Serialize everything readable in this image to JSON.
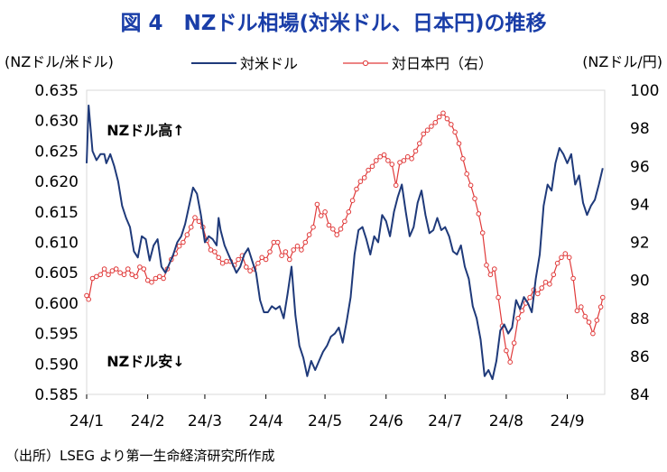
{
  "title": "図 4　NZドル相場(対米ドル、日本円)の推移",
  "source": "（出所）LSEG より第一生命経済研究所作成",
  "chart_data": {
    "type": "line",
    "title": "図 4　NZドル相場(対米ドル、日本円)の推移",
    "left_axis_label": "(NZドル/米ドル)",
    "right_axis_label": "(NZドル/円)",
    "x_tick_labels": [
      "24/1",
      "24/2",
      "24/3",
      "24/4",
      "24/5",
      "24/6",
      "24/7",
      "24/8",
      "24/9"
    ],
    "x_tick_days": [
      0,
      31,
      60,
      91,
      121,
      152,
      182,
      213,
      244
    ],
    "x_range_days": [
      0,
      263
    ],
    "left_ylim": [
      0.585,
      0.635
    ],
    "left_ticks": [
      "0.585",
      "0.590",
      "0.595",
      "0.600",
      "0.605",
      "0.610",
      "0.615",
      "0.620",
      "0.625",
      "0.630",
      "0.635"
    ],
    "right_ylim": [
      84,
      100
    ],
    "right_ticks": [
      "84",
      "86",
      "88",
      "90",
      "92",
      "94",
      "96",
      "98",
      "100"
    ],
    "annotations": [
      {
        "text": "NZドル高↑",
        "day": 30,
        "value": 0.6285,
        "axis": "left"
      },
      {
        "text": "NZドル安↓",
        "day": 30,
        "value": 0.5905,
        "axis": "left"
      }
    ],
    "legend_position": "top",
    "grid": false,
    "series": [
      {
        "name": "対米ドル",
        "axis": "left",
        "color": "#1f3a7a",
        "marker": "none",
        "points": [
          [
            0,
            0.623
          ],
          [
            1,
            0.6325
          ],
          [
            3,
            0.625
          ],
          [
            5,
            0.6235
          ],
          [
            7,
            0.6245
          ],
          [
            9,
            0.6245
          ],
          [
            10,
            0.623
          ],
          [
            12,
            0.6245
          ],
          [
            14,
            0.6225
          ],
          [
            16,
            0.62
          ],
          [
            18,
            0.616
          ],
          [
            20,
            0.614
          ],
          [
            22,
            0.6125
          ],
          [
            24,
            0.6085
          ],
          [
            26,
            0.6075
          ],
          [
            28,
            0.611
          ],
          [
            30,
            0.6105
          ],
          [
            32,
            0.607
          ],
          [
            34,
            0.6095
          ],
          [
            36,
            0.6105
          ],
          [
            38,
            0.606
          ],
          [
            40,
            0.605
          ],
          [
            42,
            0.6065
          ],
          [
            44,
            0.608
          ],
          [
            46,
            0.61
          ],
          [
            48,
            0.611
          ],
          [
            50,
            0.613
          ],
          [
            52,
            0.616
          ],
          [
            54,
            0.619
          ],
          [
            56,
            0.618
          ],
          [
            58,
            0.6145
          ],
          [
            60,
            0.61
          ],
          [
            62,
            0.611
          ],
          [
            64,
            0.6105
          ],
          [
            66,
            0.6095
          ],
          [
            67,
            0.614
          ],
          [
            68,
            0.612
          ],
          [
            70,
            0.6095
          ],
          [
            72,
            0.608
          ],
          [
            74,
            0.6065
          ],
          [
            76,
            0.605
          ],
          [
            78,
            0.606
          ],
          [
            80,
            0.608
          ],
          [
            82,
            0.609
          ],
          [
            84,
            0.607
          ],
          [
            86,
            0.605
          ],
          [
            88,
            0.6005
          ],
          [
            90,
            0.5985
          ],
          [
            92,
            0.5985
          ],
          [
            94,
            0.5995
          ],
          [
            96,
            0.599
          ],
          [
            98,
            0.5995
          ],
          [
            100,
            0.5975
          ],
          [
            102,
            0.6015
          ],
          [
            104,
            0.606
          ],
          [
            106,
            0.598
          ],
          [
            108,
            0.593
          ],
          [
            110,
            0.591
          ],
          [
            112,
            0.588
          ],
          [
            114,
            0.5905
          ],
          [
            116,
            0.589
          ],
          [
            118,
            0.5905
          ],
          [
            120,
            0.592
          ],
          [
            122,
            0.593
          ],
          [
            124,
            0.5945
          ],
          [
            126,
            0.595
          ],
          [
            128,
            0.596
          ],
          [
            130,
            0.5935
          ],
          [
            132,
            0.597
          ],
          [
            134,
            0.601
          ],
          [
            136,
            0.608
          ],
          [
            138,
            0.612
          ],
          [
            140,
            0.6125
          ],
          [
            142,
            0.6105
          ],
          [
            144,
            0.608
          ],
          [
            146,
            0.611
          ],
          [
            148,
            0.61
          ],
          [
            150,
            0.6145
          ],
          [
            152,
            0.6135
          ],
          [
            154,
            0.611
          ],
          [
            156,
            0.615
          ],
          [
            158,
            0.6175
          ],
          [
            160,
            0.6195
          ],
          [
            162,
            0.615
          ],
          [
            164,
            0.611
          ],
          [
            166,
            0.6125
          ],
          [
            168,
            0.6165
          ],
          [
            170,
            0.6185
          ],
          [
            172,
            0.6145
          ],
          [
            174,
            0.6115
          ],
          [
            176,
            0.612
          ],
          [
            178,
            0.614
          ],
          [
            180,
            0.612
          ],
          [
            182,
            0.6125
          ],
          [
            184,
            0.611
          ],
          [
            186,
            0.6085
          ],
          [
            188,
            0.608
          ],
          [
            190,
            0.6095
          ],
          [
            192,
            0.606
          ],
          [
            194,
            0.604
          ],
          [
            196,
            0.5995
          ],
          [
            198,
            0.5975
          ],
          [
            200,
            0.594
          ],
          [
            202,
            0.588
          ],
          [
            204,
            0.589
          ],
          [
            206,
            0.5875
          ],
          [
            208,
            0.5905
          ],
          [
            210,
            0.5955
          ],
          [
            212,
            0.5965
          ],
          [
            214,
            0.595
          ],
          [
            216,
            0.596
          ],
          [
            218,
            0.6005
          ],
          [
            220,
            0.599
          ],
          [
            222,
            0.601
          ],
          [
            224,
            0.6
          ],
          [
            226,
            0.5985
          ],
          [
            228,
            0.604
          ],
          [
            230,
            0.608
          ],
          [
            232,
            0.616
          ],
          [
            234,
            0.6195
          ],
          [
            236,
            0.6185
          ],
          [
            238,
            0.623
          ],
          [
            240,
            0.6255
          ],
          [
            242,
            0.6245
          ],
          [
            244,
            0.623
          ],
          [
            246,
            0.6245
          ],
          [
            248,
            0.6195
          ],
          [
            250,
            0.621
          ],
          [
            252,
            0.6165
          ],
          [
            254,
            0.6145
          ],
          [
            256,
            0.616
          ],
          [
            258,
            0.617
          ],
          [
            260,
            0.6195
          ],
          [
            262,
            0.6222
          ]
        ]
      },
      {
        "name": "対日本円（右）",
        "axis": "right",
        "color": "#e03a3a",
        "marker": "open-circle",
        "points": [
          [
            0,
            89.2
          ],
          [
            1,
            89.0
          ],
          [
            3,
            90.1
          ],
          [
            5,
            90.2
          ],
          [
            7,
            90.3
          ],
          [
            9,
            90.6
          ],
          [
            11,
            90.3
          ],
          [
            13,
            90.5
          ],
          [
            15,
            90.6
          ],
          [
            17,
            90.4
          ],
          [
            19,
            90.3
          ],
          [
            21,
            90.6
          ],
          [
            23,
            90.3
          ],
          [
            25,
            90.2
          ],
          [
            27,
            90.7
          ],
          [
            29,
            90.6
          ],
          [
            31,
            90.0
          ],
          [
            33,
            89.9
          ],
          [
            35,
            90.1
          ],
          [
            37,
            90.2
          ],
          [
            39,
            90.1
          ],
          [
            41,
            90.6
          ],
          [
            43,
            91.1
          ],
          [
            45,
            91.4
          ],
          [
            47,
            91.8
          ],
          [
            49,
            92.0
          ],
          [
            51,
            92.4
          ],
          [
            53,
            92.8
          ],
          [
            55,
            93.3
          ],
          [
            57,
            93.1
          ],
          [
            59,
            92.8
          ],
          [
            61,
            92.1
          ],
          [
            63,
            91.6
          ],
          [
            65,
            91.5
          ],
          [
            67,
            91.2
          ],
          [
            69,
            90.9
          ],
          [
            71,
            91.0
          ],
          [
            73,
            91.0
          ],
          [
            75,
            90.8
          ],
          [
            77,
            91.1
          ],
          [
            79,
            91.3
          ],
          [
            81,
            90.7
          ],
          [
            83,
            90.5
          ],
          [
            85,
            90.6
          ],
          [
            87,
            90.9
          ],
          [
            89,
            91.2
          ],
          [
            91,
            91.1
          ],
          [
            93,
            91.5
          ],
          [
            95,
            92.0
          ],
          [
            97,
            92.0
          ],
          [
            99,
            91.3
          ],
          [
            101,
            91.5
          ],
          [
            103,
            91.1
          ],
          [
            105,
            91.6
          ],
          [
            107,
            91.8
          ],
          [
            109,
            91.6
          ],
          [
            111,
            92.0
          ],
          [
            113,
            92.4
          ],
          [
            115,
            92.8
          ],
          [
            117,
            94.0
          ],
          [
            119,
            93.4
          ],
          [
            121,
            93.6
          ],
          [
            123,
            92.9
          ],
          [
            125,
            92.7
          ],
          [
            127,
            92.4
          ],
          [
            129,
            92.7
          ],
          [
            131,
            93.1
          ],
          [
            133,
            93.6
          ],
          [
            135,
            94.2
          ],
          [
            137,
            94.8
          ],
          [
            139,
            95.2
          ],
          [
            141,
            95.4
          ],
          [
            143,
            95.8
          ],
          [
            145,
            96.0
          ],
          [
            147,
            96.3
          ],
          [
            149,
            96.5
          ],
          [
            151,
            96.6
          ],
          [
            153,
            96.3
          ],
          [
            155,
            96.1
          ],
          [
            157,
            95.0
          ],
          [
            159,
            96.2
          ],
          [
            161,
            96.3
          ],
          [
            163,
            96.5
          ],
          [
            165,
            96.4
          ],
          [
            167,
            96.8
          ],
          [
            169,
            97.2
          ],
          [
            171,
            97.7
          ],
          [
            173,
            97.9
          ],
          [
            175,
            98.1
          ],
          [
            177,
            98.3
          ],
          [
            179,
            98.6
          ],
          [
            181,
            98.8
          ],
          [
            183,
            98.5
          ],
          [
            185,
            98.2
          ],
          [
            187,
            97.8
          ],
          [
            189,
            97.2
          ],
          [
            191,
            96.4
          ],
          [
            193,
            95.6
          ],
          [
            195,
            95.0
          ],
          [
            197,
            94.3
          ],
          [
            199,
            93.5
          ],
          [
            201,
            92.5
          ],
          [
            203,
            90.8
          ],
          [
            205,
            90.3
          ],
          [
            207,
            90.6
          ],
          [
            209,
            89.1
          ],
          [
            211,
            87.6
          ],
          [
            213,
            86.3
          ],
          [
            215,
            85.7
          ],
          [
            217,
            86.7
          ],
          [
            219,
            88.0
          ],
          [
            221,
            88.4
          ],
          [
            223,
            88.8
          ],
          [
            225,
            89.1
          ],
          [
            227,
            89.5
          ],
          [
            229,
            89.3
          ],
          [
            231,
            89.6
          ],
          [
            233,
            89.9
          ],
          [
            235,
            89.8
          ],
          [
            237,
            90.3
          ],
          [
            239,
            90.9
          ],
          [
            241,
            91.2
          ],
          [
            243,
            91.4
          ],
          [
            245,
            91.2
          ],
          [
            247,
            90.1
          ],
          [
            249,
            88.4
          ],
          [
            251,
            88.6
          ],
          [
            253,
            88.1
          ],
          [
            255,
            87.8
          ],
          [
            257,
            87.2
          ],
          [
            259,
            87.9
          ],
          [
            261,
            88.6
          ],
          [
            262,
            89.1
          ]
        ]
      }
    ]
  }
}
